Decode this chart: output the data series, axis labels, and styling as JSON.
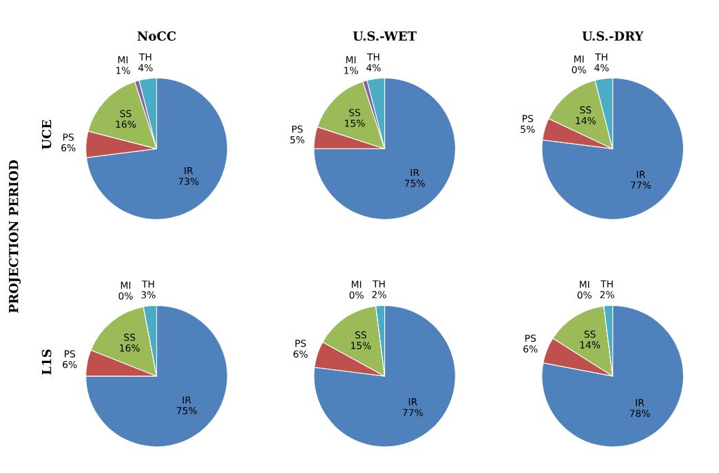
{
  "chart_data": [
    {
      "type": "pie",
      "title": "NoCC",
      "ylabel": "UCE",
      "annotations": [
        "PROJECTION PERIOD"
      ],
      "categories": [
        "IR",
        "PS",
        "SS",
        "MI",
        "TH"
      ],
      "values": [
        73,
        6,
        16,
        1,
        4
      ],
      "value_labels": [
        "73%",
        "6%",
        "16%",
        "1%",
        "4%"
      ],
      "colors": [
        "#4f81bd",
        "#c0504d",
        "#9bbb59",
        "#8064a2",
        "#4bacc6"
      ]
    },
    {
      "type": "pie",
      "title": "U.S.-WET",
      "categories": [
        "IR",
        "PS",
        "SS",
        "MI",
        "TH"
      ],
      "values": [
        75,
        5,
        15,
        1,
        4
      ],
      "value_labels": [
        "75%",
        "5%",
        "15%",
        "1%",
        "4%"
      ],
      "colors": [
        "#4f81bd",
        "#c0504d",
        "#9bbb59",
        "#8064a2",
        "#4bacc6"
      ]
    },
    {
      "type": "pie",
      "title": "U.S.-DRY",
      "categories": [
        "IR",
        "PS",
        "SS",
        "MI",
        "TH"
      ],
      "values": [
        77,
        5,
        14,
        0,
        4
      ],
      "value_labels": [
        "77%",
        "5%",
        "14%",
        "0%",
        "4%"
      ],
      "colors": [
        "#4f81bd",
        "#c0504d",
        "#9bbb59",
        "#8064a2",
        "#4bacc6"
      ]
    },
    {
      "type": "pie",
      "ylabel": "L1S",
      "categories": [
        "IR",
        "PS",
        "SS",
        "MI",
        "TH"
      ],
      "values": [
        75,
        6,
        16,
        0,
        3
      ],
      "value_labels": [
        "75%",
        "6%",
        "16%",
        "0%",
        "3%"
      ],
      "colors": [
        "#4f81bd",
        "#c0504d",
        "#9bbb59",
        "#8064a2",
        "#4bacc6"
      ]
    },
    {
      "type": "pie",
      "categories": [
        "IR",
        "PS",
        "SS",
        "MI",
        "TH"
      ],
      "values": [
        77,
        6,
        15,
        0,
        2
      ],
      "value_labels": [
        "77%",
        "6%",
        "15%",
        "0%",
        "2%"
      ],
      "colors": [
        "#4f81bd",
        "#c0504d",
        "#9bbb59",
        "#8064a2",
        "#4bacc6"
      ]
    },
    {
      "type": "pie",
      "categories": [
        "IR",
        "PS",
        "SS",
        "MI",
        "TH"
      ],
      "values": [
        78,
        6,
        14,
        0,
        2
      ],
      "value_labels": [
        "78%",
        "6%",
        "14%",
        "0%",
        "2%"
      ],
      "colors": [
        "#4f81bd",
        "#c0504d",
        "#9bbb59",
        "#8064a2",
        "#4bacc6"
      ]
    }
  ]
}
